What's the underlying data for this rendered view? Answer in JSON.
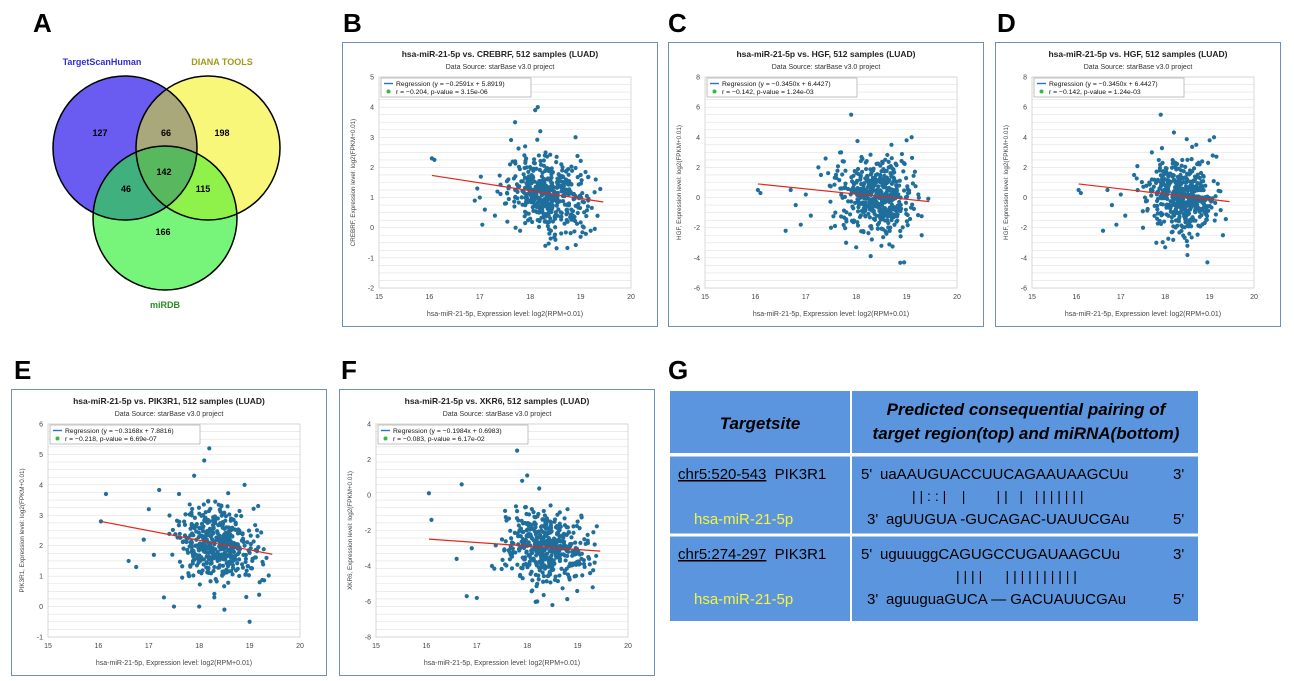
{
  "panel_letters": [
    "A",
    "B",
    "C",
    "D",
    "E",
    "F",
    "G"
  ],
  "venn": {
    "sets": [
      {
        "name": "TargetScanHuman",
        "color": "#6a5cf0",
        "label_color": "#2f2fd0"
      },
      {
        "name": "DIANA TOOLS",
        "color": "#f8f77a",
        "label_color": "#a29a18"
      },
      {
        "name": "miRDB",
        "color": "#77f57a",
        "label_color": "#2a8a2a"
      }
    ],
    "counts": {
      "a_only": "127",
      "ab": "66",
      "b_only": "198",
      "abc": "142",
      "ac": "46",
      "bc": "115",
      "c_only": "166"
    }
  },
  "chart_data": [
    {
      "id": "B",
      "type": "scatter",
      "title": "hsa-miR-21-5p vs. CREBRF, 512 samples (LUAD)",
      "subtitle": "Data Source: starBase v3.0 project",
      "xlabel": "hsa-miR-21-5p, Expression level: log2(RPM+0.01)",
      "ylabel": "CREBRF, Expression level: log2(FPKM+0.01)",
      "xlim": [
        15,
        20
      ],
      "ylim": [
        -2,
        5
      ],
      "xticks": [
        "15",
        "16",
        "17",
        "18",
        "19",
        "20"
      ],
      "yticks": [
        "-2",
        "-1",
        "0",
        "1",
        "2",
        "3",
        "4",
        "5"
      ],
      "legend": [
        "Regression (y = −0.2591x + 5.8919)",
        "r = −0.204, p-value = 3.15e-06"
      ],
      "regression": {
        "slope": -0.2591,
        "intercept": 5.8919,
        "x0": 16.05,
        "x1": 19.45
      },
      "cloud": {
        "cx": 18.35,
        "sx": 0.38,
        "sy": 0.58
      },
      "points": [
        [
          16.05,
          2.3
        ],
        [
          16.1,
          2.25
        ],
        [
          16.9,
          0.9
        ],
        [
          16.95,
          1.3
        ],
        [
          17.0,
          1.0
        ],
        [
          17.05,
          0.1
        ],
        [
          17.1,
          0.6
        ],
        [
          17.3,
          0.4
        ],
        [
          17.35,
          1.2
        ],
        [
          17.5,
          0.8
        ],
        [
          17.6,
          2.1
        ],
        [
          17.7,
          3.5
        ],
        [
          17.8,
          -0.1
        ],
        [
          17.9,
          2.7
        ],
        [
          18.0,
          0.3
        ],
        [
          18.1,
          3.9
        ],
        [
          18.15,
          4.0
        ],
        [
          18.2,
          3.2
        ],
        [
          18.3,
          -0.6
        ],
        [
          18.5,
          -0.4
        ],
        [
          18.9,
          3.0
        ],
        [
          19.0,
          -0.3
        ],
        [
          19.2,
          -0.1
        ],
        [
          19.3,
          1.6
        ]
      ]
    },
    {
      "id": "C",
      "type": "scatter",
      "title": "hsa-miR-21-5p vs. HGF, 512 samples (LUAD)",
      "subtitle": "Data Source: starBase v3.0 project",
      "xlabel": "hsa-miR-21-5p, Expression level: log2(RPM+0.01)",
      "ylabel": "HGF, Expression level: log2(FPKM+0.01)",
      "xlim": [
        15,
        20
      ],
      "ylim": [
        -6,
        8
      ],
      "xticks": [
        "15",
        "16",
        "17",
        "18",
        "19",
        "20"
      ],
      "yticks": [
        "-6",
        "-4",
        "-2",
        "0",
        "2",
        "4",
        "6",
        "8"
      ],
      "legend": [
        "Regression (y = −0.3450x + 6.4427)",
        "r = −0.142, p-value = 1.24e-03"
      ],
      "regression": {
        "slope": -0.345,
        "intercept": 6.4427,
        "x0": 16.05,
        "x1": 19.45
      },
      "cloud": {
        "cx": 18.4,
        "sx": 0.38,
        "sy": 1.2
      },
      "points": [
        [
          16.05,
          0.5
        ],
        [
          16.1,
          0.3
        ],
        [
          16.6,
          -2.2
        ],
        [
          16.7,
          0.5
        ],
        [
          16.8,
          -0.5
        ],
        [
          16.9,
          -1.8
        ],
        [
          17.0,
          0.2
        ],
        [
          17.1,
          -1.2
        ],
        [
          17.3,
          1.5
        ],
        [
          17.5,
          -2.0
        ],
        [
          17.7,
          3.0
        ],
        [
          17.8,
          -3.0
        ],
        [
          17.9,
          5.5
        ],
        [
          18.0,
          -3.3
        ],
        [
          18.5,
          -3.2
        ],
        [
          18.7,
          3.5
        ],
        [
          18.95,
          -4.3
        ],
        [
          19.0,
          3.8
        ],
        [
          19.1,
          4.0
        ],
        [
          19.3,
          -2.5
        ]
      ]
    },
    {
      "id": "D",
      "type": "scatter",
      "title": "hsa-miR-21-5p vs. HGF, 512 samples (LUAD)",
      "subtitle": "Data Source: starBase v3.0 project",
      "xlabel": "hsa-miR-21-5p, Expression level: log2(RPM+0.01)",
      "ylabel": "HGF, Expression level: log2(FPKM+0.01)",
      "xlim": [
        15,
        20
      ],
      "ylim": [
        -6,
        8
      ],
      "xticks": [
        "15",
        "16",
        "17",
        "18",
        "19",
        "20"
      ],
      "yticks": [
        "-6",
        "-4",
        "-2",
        "0",
        "2",
        "4",
        "6",
        "8"
      ],
      "legend": [
        "Regression (y = −0.3450x + 6.4427)",
        "r = −0.142, p-value = 1.24e-03"
      ],
      "regression": {
        "slope": -0.345,
        "intercept": 6.4427,
        "x0": 16.05,
        "x1": 19.45
      },
      "cloud": {
        "cx": 18.4,
        "sx": 0.38,
        "sy": 1.2
      },
      "points": [
        [
          16.05,
          0.5
        ],
        [
          16.1,
          0.3
        ],
        [
          16.6,
          -2.2
        ],
        [
          16.7,
          0.5
        ],
        [
          16.8,
          -0.5
        ],
        [
          16.9,
          -1.8
        ],
        [
          17.0,
          0.2
        ],
        [
          17.1,
          -1.2
        ],
        [
          17.3,
          1.5
        ],
        [
          17.5,
          -2.0
        ],
        [
          17.7,
          3.0
        ],
        [
          17.8,
          -3.0
        ],
        [
          17.9,
          5.5
        ],
        [
          18.0,
          -3.3
        ],
        [
          18.5,
          -3.2
        ],
        [
          18.7,
          3.5
        ],
        [
          18.95,
          -4.3
        ],
        [
          19.0,
          3.8
        ],
        [
          19.1,
          4.0
        ],
        [
          19.3,
          -2.5
        ]
      ]
    },
    {
      "id": "E",
      "type": "scatter",
      "title": "hsa-miR-21-5p vs. PIK3R1, 512 samples (LUAD)",
      "subtitle": "Data Source: starBase v3.0 project",
      "xlabel": "hsa-miR-21-5p, Expression level: log2(RPM+0.01)",
      "ylabel": "PIK3R1, Expression level: log2(FPKM+0.01)",
      "xlim": [
        15,
        20
      ],
      "ylim": [
        -1,
        6
      ],
      "xticks": [
        "15",
        "16",
        "17",
        "18",
        "19",
        "20"
      ],
      "yticks": [
        "-1",
        "0",
        "1",
        "2",
        "3",
        "4",
        "5",
        "6"
      ],
      "legend": [
        "Regression (y = −0.3168x + 7.8816)",
        "r = −0.218, p-value = 6.69e-07"
      ],
      "regression": {
        "slope": -0.3168,
        "intercept": 7.8816,
        "x0": 16.05,
        "x1": 19.45
      },
      "cloud": {
        "cx": 18.35,
        "sx": 0.4,
        "sy": 0.65
      },
      "points": [
        [
          16.05,
          2.8
        ],
        [
          16.15,
          3.7
        ],
        [
          16.6,
          1.5
        ],
        [
          16.75,
          1.3
        ],
        [
          16.9,
          2.2
        ],
        [
          17.0,
          3.2
        ],
        [
          17.1,
          1.7
        ],
        [
          17.3,
          0.3
        ],
        [
          17.5,
          0.0
        ],
        [
          17.6,
          3.7
        ],
        [
          17.8,
          1.0
        ],
        [
          17.9,
          4.3
        ],
        [
          18.0,
          0.0
        ],
        [
          18.1,
          4.8
        ],
        [
          18.2,
          5.2
        ],
        [
          18.3,
          0.3
        ],
        [
          18.5,
          -0.1
        ],
        [
          18.9,
          4.0
        ],
        [
          19.0,
          -0.5
        ],
        [
          19.2,
          0.8
        ]
      ]
    },
    {
      "id": "F",
      "type": "scatter",
      "title": "hsa-miR-21-5p vs. XKR6, 512 samples (LUAD)",
      "subtitle": "Data Source: starBase v3.0 project",
      "xlabel": "hsa-miR-21-5p, Expression level: log2(RPM+0.01)",
      "ylabel": "XKR6, Expression level: log2(FPKM+0.01)",
      "xlim": [
        15,
        20
      ],
      "ylim": [
        -8,
        4
      ],
      "xticks": [
        "15",
        "16",
        "17",
        "18",
        "19",
        "20"
      ],
      "yticks": [
        "-8",
        "-6",
        "-4",
        "-2",
        "0",
        "2",
        "4"
      ],
      "legend": [
        "Regression (y = −0.1984x + 0.6983)",
        "r = −0.083, p-value = 6.17e-02"
      ],
      "regression": {
        "slope": -0.1984,
        "intercept": 0.6983,
        "x0": 16.05,
        "x1": 19.45
      },
      "cloud": {
        "cx": 18.4,
        "sx": 0.4,
        "sy": 1.0
      },
      "points": [
        [
          16.05,
          0.1
        ],
        [
          16.1,
          -1.4
        ],
        [
          16.6,
          -3.6
        ],
        [
          16.7,
          0.6
        ],
        [
          16.8,
          -5.7
        ],
        [
          16.9,
          -3.0
        ],
        [
          17.0,
          -5.8
        ],
        [
          17.3,
          -4.0
        ],
        [
          17.5,
          -2.5
        ],
        [
          17.7,
          -3.3
        ],
        [
          17.8,
          2.5
        ],
        [
          17.9,
          0.8
        ],
        [
          18.0,
          1.1
        ],
        [
          18.2,
          -6.0
        ],
        [
          18.5,
          -6.2
        ],
        [
          18.8,
          -0.8
        ],
        [
          19.0,
          -1.5
        ],
        [
          19.3,
          -5.2
        ]
      ]
    }
  ],
  "table": {
    "header_col1": "Targetsite",
    "header_col2_line1": "Predicted consequential pairing of",
    "header_col2_line2": "target region(top) and miRNA(bottom)",
    "rows": [
      {
        "site": "chr5:520-543",
        "gene": "PIK3R1",
        "mirna": "hsa-miR-21-5p",
        "top_prefix": "5'",
        "top_seq": "uaAAUGUACCUUCAGAAUAAGCUu",
        "top_suffix": "3'",
        "bars": "| | : : |    |        | |   |   | | | | | | |",
        "bottom_prefix": "3'",
        "bottom_seq": "agUUGUA -GUCAGAC-UAUUCGAu",
        "bottom_suffix": "5'"
      },
      {
        "site": "chr5:274-297",
        "gene": "PIK3R1",
        "mirna": "hsa-miR-21-5p",
        "top_prefix": "5'",
        "top_seq": "uguuuggCAGUGCCUGAUAAGCUu",
        "top_suffix": "3'",
        "bars": "| | | |      | | | | | | | | | |",
        "bottom_prefix": "3'",
        "bottom_seq": "aguuguaGUCA — GACUAUUCGAu",
        "bottom_suffix": "5'"
      }
    ],
    "colors": {
      "header_bg": "#5b95de",
      "body_bg": "#5b95de",
      "border": "#ffffff",
      "mirna_text": "#f5f542"
    }
  }
}
